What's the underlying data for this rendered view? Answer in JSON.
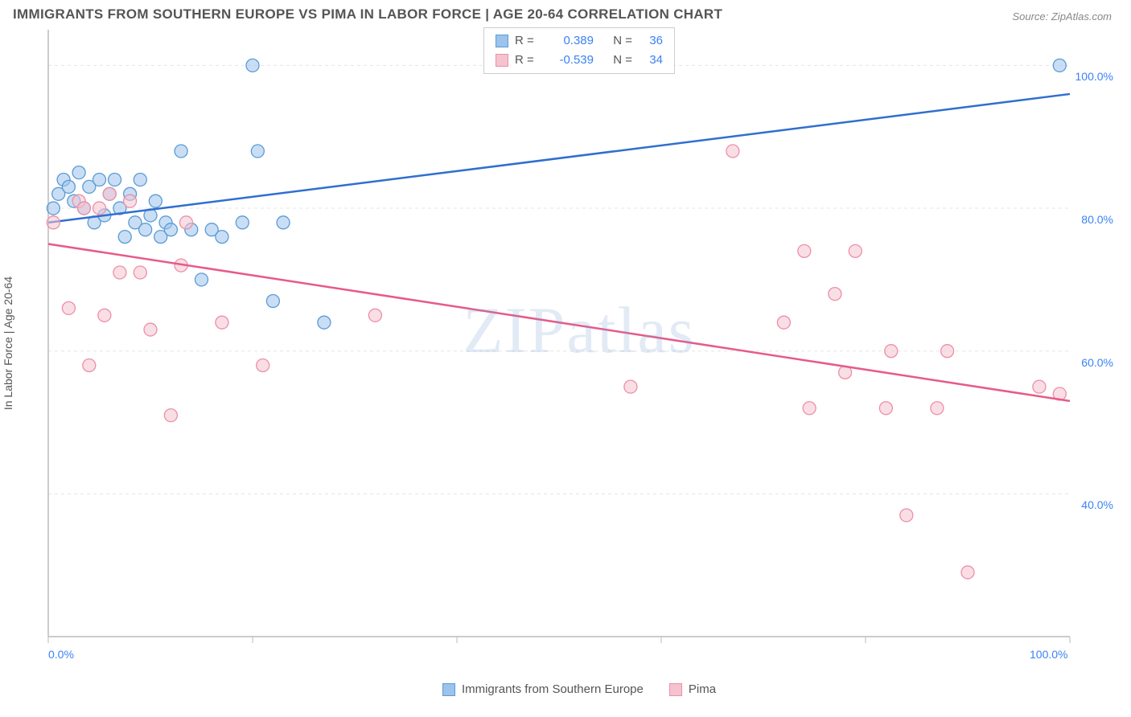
{
  "title": "IMMIGRANTS FROM SOUTHERN EUROPE VS PIMA IN LABOR FORCE | AGE 20-64 CORRELATION CHART",
  "source": "Source: ZipAtlas.com",
  "watermark": "ZIPatlas",
  "ylabel": "In Labor Force | Age 20-64",
  "chart": {
    "type": "scatter",
    "xlim": [
      0,
      100
    ],
    "ylim": [
      20,
      105
    ],
    "xticks": [
      0,
      20,
      40,
      60,
      80,
      100
    ],
    "yticks": [
      40,
      60,
      80,
      100
    ],
    "xtick_labels": [
      "0.0%",
      "",
      "",
      "",
      "",
      "100.0%"
    ],
    "ytick_labels": [
      "40.0%",
      "60.0%",
      "80.0%",
      "100.0%"
    ],
    "grid_color": "#e5e5e5",
    "axis_color": "#bbbbbb",
    "tick_label_color": "#3b82f6",
    "tick_fontsize": 14,
    "background_color": "#ffffff",
    "marker_radius": 8,
    "marker_opacity": 0.55,
    "trend_width": 2.5
  },
  "series": [
    {
      "name": "Immigrants from Southern Europe",
      "color_fill": "#9cc3ec",
      "color_stroke": "#5b9bd5",
      "trend_color": "#2f6fd0",
      "R": "0.389",
      "N": "36",
      "trend": {
        "x1": 0,
        "y1": 78,
        "x2": 100,
        "y2": 96
      },
      "points": [
        [
          0.5,
          80
        ],
        [
          1,
          82
        ],
        [
          1.5,
          84
        ],
        [
          2,
          83
        ],
        [
          2.5,
          81
        ],
        [
          3,
          85
        ],
        [
          3.5,
          80
        ],
        [
          4,
          83
        ],
        [
          4.5,
          78
        ],
        [
          5,
          84
        ],
        [
          5.5,
          79
        ],
        [
          6,
          82
        ],
        [
          6.5,
          84
        ],
        [
          7,
          80
        ],
        [
          7.5,
          76
        ],
        [
          8,
          82
        ],
        [
          8.5,
          78
        ],
        [
          9,
          84
        ],
        [
          9.5,
          77
        ],
        [
          10,
          79
        ],
        [
          10.5,
          81
        ],
        [
          11,
          76
        ],
        [
          11.5,
          78
        ],
        [
          12,
          77
        ],
        [
          13,
          88
        ],
        [
          14,
          77
        ],
        [
          15,
          70
        ],
        [
          16,
          77
        ],
        [
          17,
          76
        ],
        [
          19,
          78
        ],
        [
          20,
          100
        ],
        [
          20.5,
          88
        ],
        [
          22,
          67
        ],
        [
          23,
          78
        ],
        [
          27,
          64
        ],
        [
          99,
          100
        ]
      ]
    },
    {
      "name": "Pima",
      "color_fill": "#f5c2cf",
      "color_stroke": "#ec8fa7",
      "trend_color": "#e75a8a",
      "R": "-0.539",
      "N": "34",
      "trend": {
        "x1": 0,
        "y1": 75,
        "x2": 100,
        "y2": 53
      },
      "points": [
        [
          0.5,
          78
        ],
        [
          2,
          66
        ],
        [
          3,
          81
        ],
        [
          3.5,
          80
        ],
        [
          4,
          58
        ],
        [
          5,
          80
        ],
        [
          5.5,
          65
        ],
        [
          6,
          82
        ],
        [
          7,
          71
        ],
        [
          8,
          81
        ],
        [
          9,
          71
        ],
        [
          10,
          63
        ],
        [
          12,
          51
        ],
        [
          13,
          72
        ],
        [
          13.5,
          78
        ],
        [
          17,
          64
        ],
        [
          21,
          58
        ],
        [
          32,
          65
        ],
        [
          57,
          55
        ],
        [
          67,
          88
        ],
        [
          72,
          64
        ],
        [
          74,
          74
        ],
        [
          74.5,
          52
        ],
        [
          77,
          68
        ],
        [
          78,
          57
        ],
        [
          79,
          74
        ],
        [
          82,
          52
        ],
        [
          82.5,
          60
        ],
        [
          84,
          37
        ],
        [
          87,
          52
        ],
        [
          88,
          60
        ],
        [
          90,
          29
        ],
        [
          97,
          55
        ],
        [
          99,
          54
        ]
      ]
    }
  ],
  "legend_top": {
    "R_label": "R =",
    "N_label": "N ="
  },
  "legend_bottom": [
    {
      "label": "Immigrants from Southern Europe",
      "swatch_series": 0
    },
    {
      "label": "Pima",
      "swatch_series": 1
    }
  ]
}
